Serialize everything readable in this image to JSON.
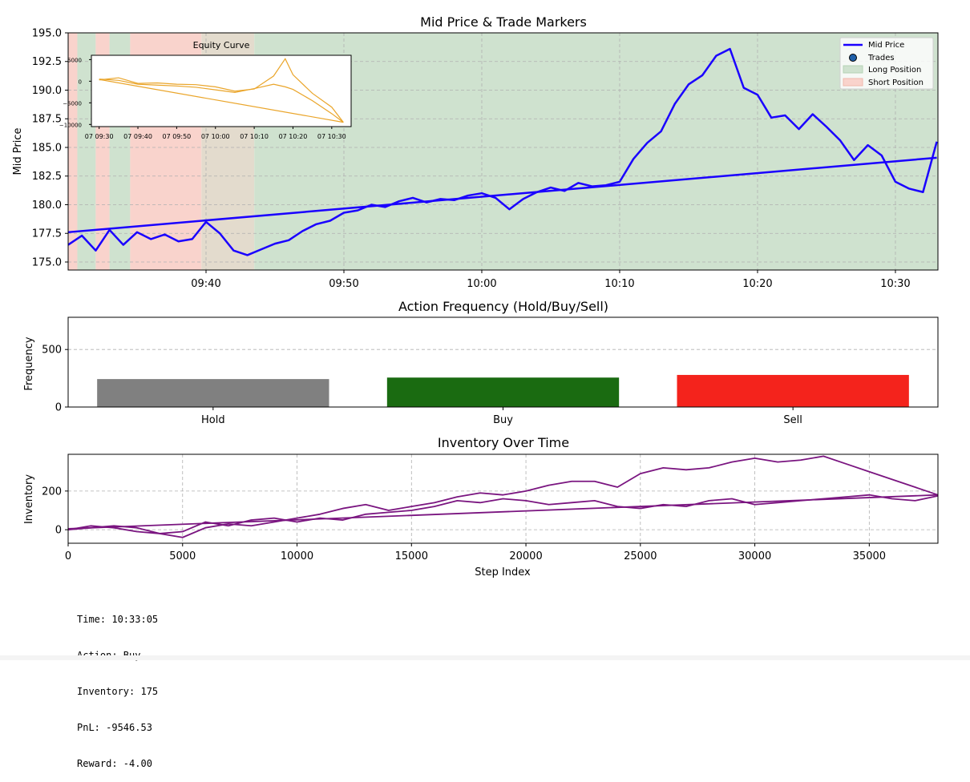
{
  "chart_data": [
    {
      "type": "line",
      "title": "Mid Price & Trade Markers",
      "xlabel": "",
      "ylabel": "Mid Price",
      "ylim": [
        174.3,
        195.0
      ],
      "xlim": [
        "09:30:00",
        "10:33:05"
      ],
      "x_ticks": [
        "09:40",
        "09:50",
        "10:00",
        "10:10",
        "10:20",
        "10:30"
      ],
      "y_ticks": [
        "175.0",
        "177.5",
        "180.0",
        "182.5",
        "185.0",
        "187.5",
        "190.0",
        "192.5",
        "195.0"
      ],
      "grid": true,
      "legend": {
        "placement": "top-right",
        "entries": [
          "Mid Price",
          "Trades",
          "Long Position",
          "Short Position"
        ]
      },
      "series": [
        {
          "name": "Mid Price",
          "color": "#1a00ff",
          "x": [
            "09:30",
            "09:31",
            "09:32",
            "09:33",
            "09:34",
            "09:35",
            "09:36",
            "09:37",
            "09:38",
            "09:39",
            "09:40",
            "09:41",
            "09:42",
            "09:43",
            "09:44",
            "09:45",
            "09:46",
            "09:47",
            "09:48",
            "09:49",
            "09:50",
            "09:51",
            "09:52",
            "09:53",
            "09:54",
            "09:55",
            "09:56",
            "09:57",
            "09:58",
            "09:59",
            "10:00",
            "10:01",
            "10:02",
            "10:03",
            "10:04",
            "10:05",
            "10:06",
            "10:07",
            "10:08",
            "10:09",
            "10:10",
            "10:11",
            "10:12",
            "10:13",
            "10:14",
            "10:15",
            "10:16",
            "10:17",
            "10:18",
            "10:19",
            "10:20",
            "10:21",
            "10:22",
            "10:23",
            "10:24",
            "10:25",
            "10:26",
            "10:27",
            "10:28",
            "10:29",
            "10:30",
            "10:31",
            "10:32",
            "10:33"
          ],
          "values": [
            176.5,
            177.3,
            176.0,
            177.8,
            176.5,
            177.6,
            177.0,
            177.4,
            176.8,
            177.0,
            178.5,
            177.5,
            176.0,
            175.6,
            176.1,
            176.6,
            176.9,
            177.7,
            178.3,
            178.6,
            179.3,
            179.5,
            180.0,
            179.8,
            180.3,
            180.6,
            180.2,
            180.5,
            180.4,
            180.8,
            181.0,
            180.6,
            179.6,
            180.5,
            181.1,
            181.5,
            181.2,
            181.9,
            181.6,
            181.7,
            182.0,
            184.0,
            185.4,
            186.4,
            188.8,
            190.5,
            191.3,
            193.0,
            193.6,
            190.2,
            189.6,
            187.6,
            187.8,
            186.6,
            187.9,
            186.8,
            185.6,
            183.9,
            185.2,
            184.3,
            182.0,
            181.4,
            181.1,
            185.5
          ]
        },
        {
          "name": "",
          "color": "#1a00ff",
          "x": [
            "09:30",
            "10:33"
          ],
          "values": [
            177.6,
            184.1
          ]
        }
      ],
      "position_bands": [
        {
          "start": "09:30:00",
          "end": "09:30:40",
          "side": "short"
        },
        {
          "start": "09:30:40",
          "end": "09:32:00",
          "side": "long"
        },
        {
          "start": "09:32:00",
          "end": "09:33:00",
          "side": "short"
        },
        {
          "start": "09:33:00",
          "end": "09:34:30",
          "side": "long"
        },
        {
          "start": "09:34:30",
          "end": "09:39:40",
          "side": "short"
        },
        {
          "start": "09:39:40",
          "end": "09:43:30",
          "side": "mixed"
        },
        {
          "start": "09:43:30",
          "end": "10:33:05",
          "side": "long"
        }
      ],
      "colors": {
        "long": "#cfe2cf",
        "short": "#f9d3cc",
        "mixed": "#e3dbcd"
      },
      "inset": {
        "title": "Equity Curve",
        "color": "#eaa52a",
        "y_ticks": [
          "5000",
          "0",
          "−5000",
          "−10000"
        ],
        "x_ticks": [
          "07 09:30",
          "07 09:40",
          "07 09:50",
          "07 10:00",
          "07 10:10",
          "07 10:20",
          "07 10:30"
        ],
        "ylim": [
          -10500,
          6000
        ],
        "series": [
          {
            "x": [
              "09:30",
              "09:35",
              "09:40",
              "09:45",
              "09:50",
              "09:55",
              "10:00",
              "10:05",
              "10:10",
              "10:15",
              "10:18",
              "10:20",
              "10:25",
              "10:30",
              "10:33"
            ],
            "values": [
              300,
              800,
              -500,
              -400,
              -700,
              -800,
              -1300,
              -2300,
              -1800,
              1200,
              5200,
              1500,
              -2800,
              -6000,
              -9500
            ]
          },
          {
            "x": [
              "09:30",
              "09:35",
              "09:40",
              "09:45",
              "09:50",
              "09:55",
              "10:00",
              "10:05",
              "10:10",
              "10:15",
              "10:18",
              "10:20",
              "10:25",
              "10:30",
              "10:33"
            ],
            "values": [
              500,
              200,
              -700,
              -900,
              -1100,
              -1400,
              -2000,
              -2600,
              -1700,
              -700,
              -1300,
              -1900,
              -4500,
              -7500,
              -9500
            ]
          },
          {
            "x": [
              "09:30",
              "10:33"
            ],
            "values": [
              400,
              -9500
            ]
          }
        ]
      }
    },
    {
      "type": "bar",
      "title": "Action Frequency (Hold/Buy/Sell)",
      "xlabel": "",
      "ylabel": "Frequency",
      "ylim": [
        0,
        780
      ],
      "y_ticks": [
        "0",
        "500"
      ],
      "categories": [
        "Hold",
        "Buy",
        "Sell"
      ],
      "values": [
        243,
        256,
        279
      ],
      "colors": [
        "#808080",
        "#1a6b11",
        "#f4231c"
      ],
      "grid": true
    },
    {
      "type": "line",
      "title": "Inventory Over Time",
      "xlabel": "Step Index",
      "ylabel": "Inventory",
      "xlim": [
        0,
        38000
      ],
      "ylim": [
        -70,
        390
      ],
      "x_ticks": [
        "0",
        "5000",
        "10000",
        "15000",
        "20000",
        "25000",
        "30000",
        "35000"
      ],
      "y_ticks": [
        "0",
        "200"
      ],
      "grid": true,
      "series": [
        {
          "name": "",
          "color": "#7a1580",
          "x": [
            0,
            1000,
            2000,
            3000,
            4000,
            5000,
            6000,
            7000,
            8000,
            9000,
            10000,
            11000,
            12000,
            13000,
            14000,
            15000,
            16000,
            17000,
            18000,
            19000,
            20000,
            21000,
            22000,
            23000,
            24000,
            25000,
            26000,
            27000,
            28000,
            29000,
            30000,
            31000,
            32000,
            33000,
            34000,
            35000,
            36000,
            37000,
            38000
          ],
          "values": [
            0,
            10,
            20,
            10,
            -20,
            -40,
            10,
            30,
            20,
            40,
            60,
            80,
            110,
            130,
            100,
            120,
            140,
            170,
            190,
            180,
            200,
            230,
            250,
            250,
            220,
            290,
            320,
            310,
            320,
            350,
            370,
            350,
            360,
            380,
            340,
            300,
            260,
            220,
            180
          ]
        },
        {
          "name": "",
          "color": "#7a1580",
          "x": [
            0,
            1000,
            2000,
            3000,
            4000,
            5000,
            6000,
            7000,
            8000,
            9000,
            10000,
            11000,
            12000,
            13000,
            14000,
            15000,
            16000,
            17000,
            18000,
            19000,
            20000,
            21000,
            22000,
            23000,
            24000,
            25000,
            26000,
            27000,
            28000,
            29000,
            30000,
            31000,
            32000,
            33000,
            34000,
            35000,
            36000,
            37000,
            38000
          ],
          "values": [
            0,
            20,
            10,
            -10,
            -20,
            -10,
            40,
            20,
            50,
            60,
            40,
            60,
            50,
            80,
            90,
            100,
            120,
            150,
            140,
            160,
            150,
            130,
            140,
            150,
            120,
            110,
            130,
            120,
            150,
            160,
            130,
            140,
            150,
            160,
            170,
            180,
            160,
            150,
            175
          ]
        },
        {
          "name": "",
          "color": "#7a1580",
          "x": [
            0,
            38000
          ],
          "values": [
            5,
            180
          ]
        }
      ]
    }
  ],
  "status": {
    "time": "Time: 10:33:05",
    "action": "Action: Buy",
    "inventory": "Inventory: 175",
    "pnl": "PnL: -9546.53",
    "reward": "Reward: -4.00"
  }
}
